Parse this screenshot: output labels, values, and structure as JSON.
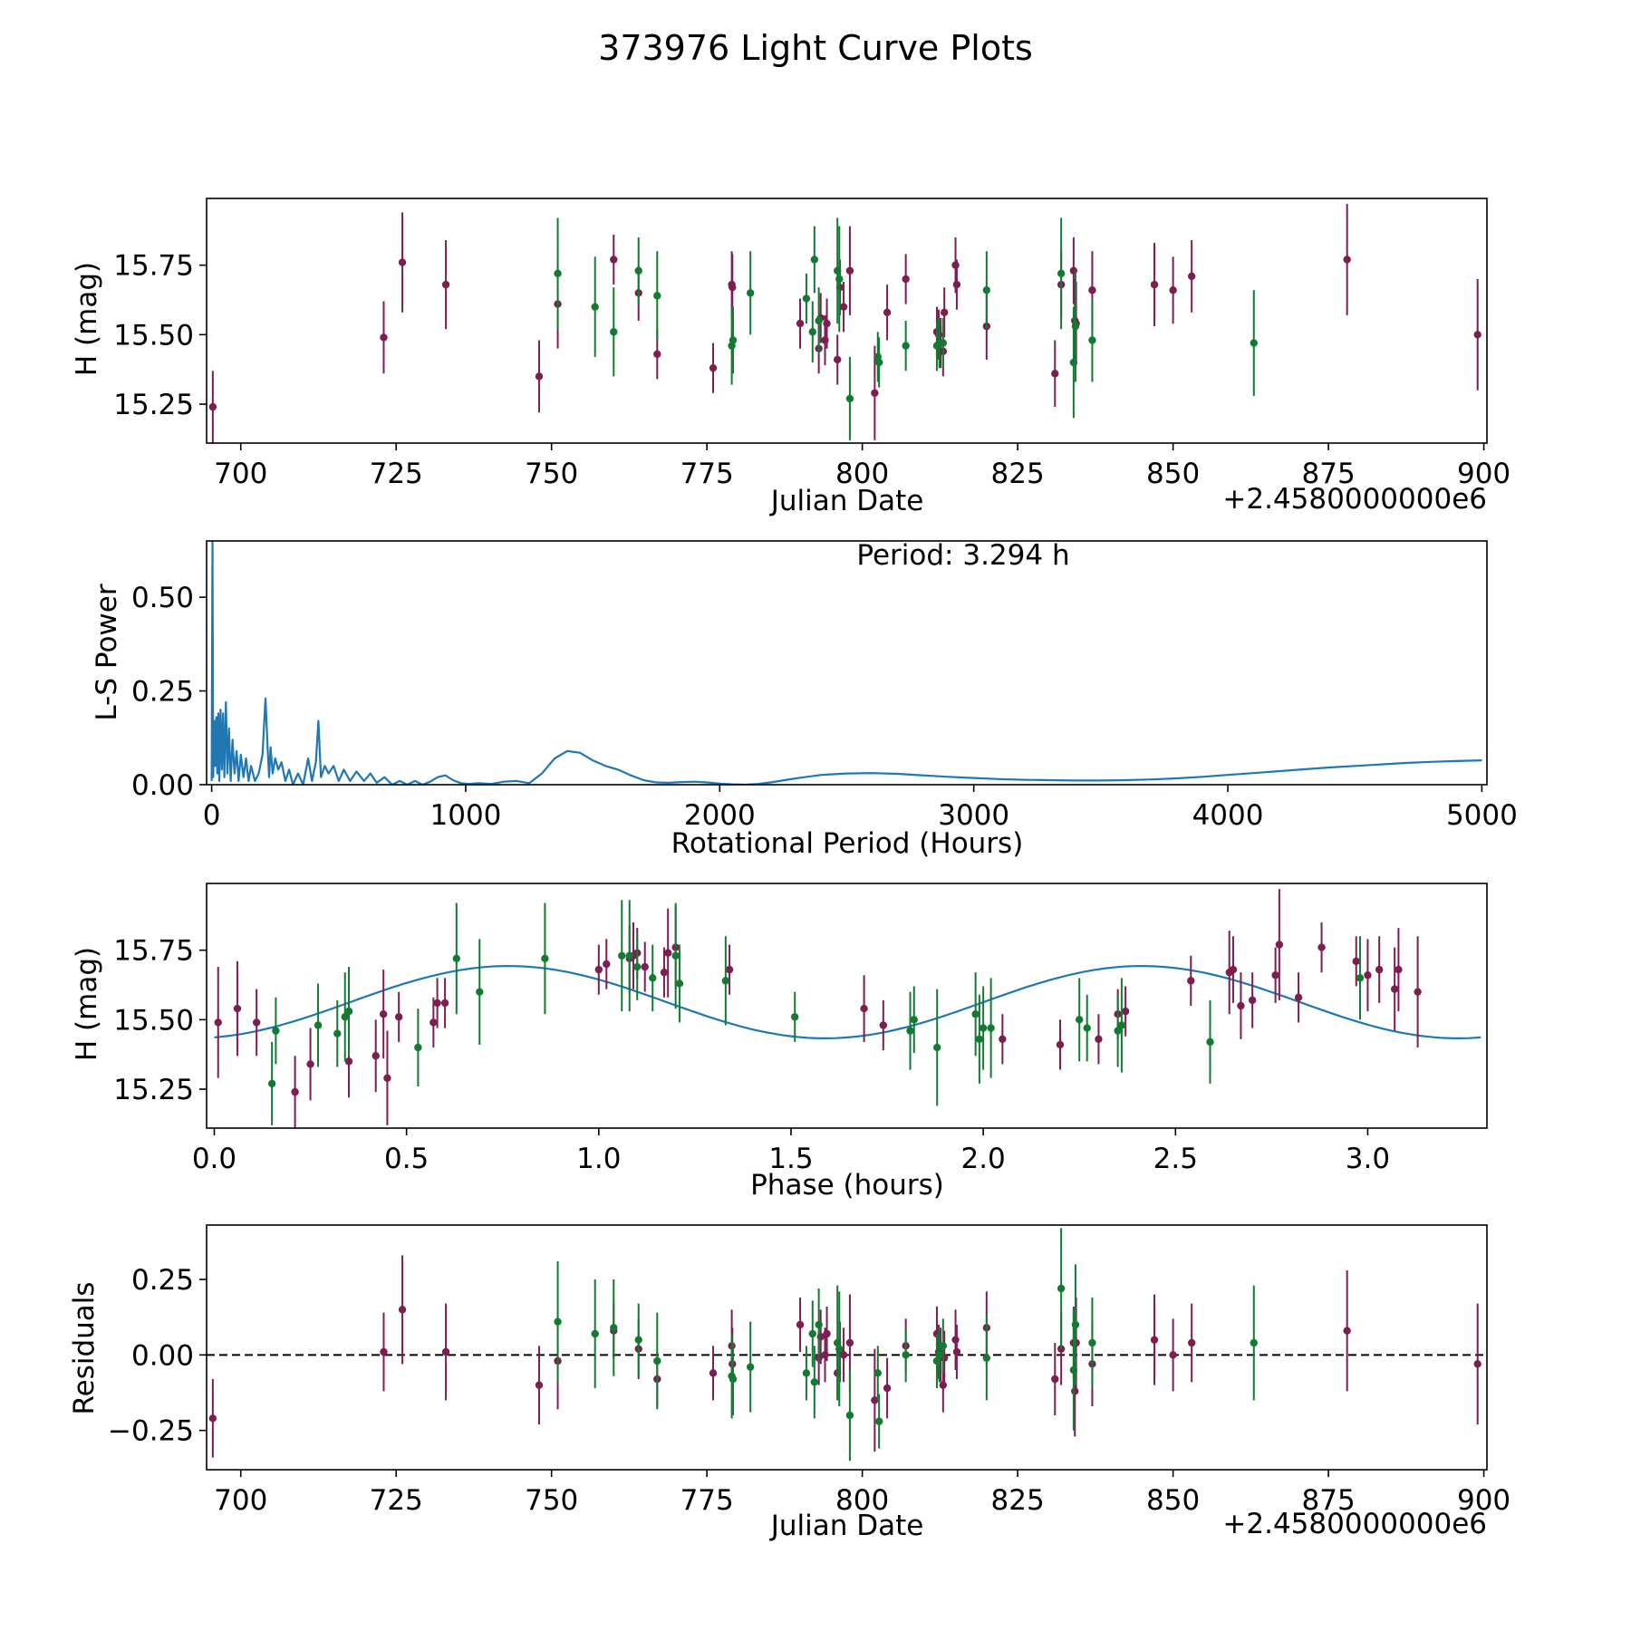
{
  "figure_title": "373976 Light Curve Plots",
  "colors": {
    "purple": "#7d1d52",
    "green": "#137a32",
    "line": "#1f77b4",
    "axis": "#000000"
  },
  "chart_data": [
    {
      "id": "lightcurve",
      "type": "scatter",
      "xlabel": "Julian Date",
      "ylabel": "H (mag)",
      "offset_label": "+2.4580000000e6",
      "xlim": [
        694.5,
        900.5
      ],
      "ylim": [
        15.11,
        15.99
      ],
      "xticks": [
        700,
        725,
        750,
        775,
        800,
        825,
        850,
        875,
        900
      ],
      "xtick_labels": [
        "700",
        "725",
        "750",
        "775",
        "800",
        "825",
        "850",
        "875",
        "900"
      ],
      "yticks": [
        15.25,
        15.5,
        15.75
      ],
      "ytick_labels": [
        "15.25",
        "15.50",
        "15.75"
      ],
      "series": [
        {
          "name": "purple",
          "x": [
            695.5,
            723.0,
            726.0,
            733.0,
            748.0,
            751.0,
            760.0,
            764.0,
            767.0,
            776.0,
            779.0,
            779.1,
            790.0,
            793.0,
            793.3,
            794.0,
            794.3,
            796.0,
            796.4,
            797.0,
            798.0,
            802.0,
            804.0,
            807.0,
            812.0,
            812.3,
            812.6,
            813.0,
            813.2,
            815.0,
            815.2,
            820.0,
            831.0,
            832.0,
            834.0,
            834.2,
            834.4,
            837.0,
            847.0,
            850.0,
            853.0,
            878.0,
            899.0
          ],
          "y": [
            15.24,
            15.49,
            15.76,
            15.68,
            15.35,
            15.61,
            15.77,
            15.65,
            15.43,
            15.38,
            15.68,
            15.67,
            15.54,
            15.45,
            15.56,
            15.48,
            15.54,
            15.41,
            15.67,
            15.6,
            15.73,
            15.29,
            15.58,
            15.7,
            15.51,
            15.5,
            15.47,
            15.44,
            15.58,
            15.75,
            15.68,
            15.53,
            15.36,
            15.68,
            15.73,
            15.55,
            15.54,
            15.66,
            15.68,
            15.66,
            15.71,
            15.77,
            15.5
          ],
          "yerr": [
            0.13,
            0.13,
            0.18,
            0.16,
            0.13,
            0.16,
            0.09,
            0.1,
            0.09,
            0.09,
            0.12,
            0.12,
            0.09,
            0.09,
            0.09,
            0.09,
            0.09,
            0.09,
            0.1,
            0.09,
            0.16,
            0.17,
            0.1,
            0.09,
            0.09,
            0.09,
            0.09,
            0.09,
            0.09,
            0.1,
            0.09,
            0.12,
            0.12,
            0.12,
            0.12,
            0.15,
            0.15,
            0.14,
            0.15,
            0.12,
            0.13,
            0.2,
            0.2
          ]
        },
        {
          "name": "green",
          "x": [
            751.0,
            757.0,
            760.0,
            764.0,
            767.0,
            779.0,
            779.2,
            782.0,
            791.0,
            792.0,
            792.3,
            793.0,
            796.0,
            796.3,
            798.0,
            802.5,
            802.7,
            807.0,
            812.0,
            812.4,
            813.0,
            820.0,
            832.0,
            834.0,
            834.3,
            837.0,
            863.0
          ],
          "y": [
            15.72,
            15.6,
            15.51,
            15.73,
            15.64,
            15.46,
            15.48,
            15.65,
            15.63,
            15.51,
            15.77,
            15.55,
            15.73,
            15.7,
            15.27,
            15.42,
            15.4,
            15.46,
            15.46,
            15.47,
            15.47,
            15.66,
            15.72,
            15.4,
            15.53,
            15.48,
            15.47
          ],
          "yerr": [
            0.2,
            0.18,
            0.16,
            0.12,
            0.16,
            0.14,
            0.12,
            0.15,
            0.09,
            0.11,
            0.12,
            0.12,
            0.19,
            0.19,
            0.15,
            0.09,
            0.09,
            0.09,
            0.09,
            0.09,
            0.09,
            0.14,
            0.2,
            0.2,
            0.2,
            0.15,
            0.19
          ]
        }
      ]
    },
    {
      "id": "periodogram",
      "type": "line",
      "xlabel": "Rotational Period (Hours)",
      "ylabel": "L-S Power",
      "annotation": "Period: 3.294 h",
      "xlim": [
        -20,
        5020
      ],
      "ylim": [
        0,
        0.65
      ],
      "xticks": [
        0,
        1000,
        2000,
        3000,
        4000,
        5000
      ],
      "xtick_labels": [
        "0",
        "1000",
        "2000",
        "3000",
        "4000",
        "5000"
      ],
      "yticks": [
        0,
        0.25,
        0.5
      ],
      "ytick_labels": [
        "0.00",
        "0.25",
        "0.50"
      ],
      "x": [
        0,
        3.3,
        6,
        10,
        14,
        18,
        22,
        26,
        30,
        35,
        40,
        45,
        50,
        56,
        62,
        68,
        75,
        82,
        90,
        98,
        106,
        115,
        125,
        135,
        145,
        155,
        170,
        185,
        200,
        212,
        220,
        226,
        232,
        240,
        250,
        262,
        275,
        290,
        305,
        320,
        340,
        360,
        380,
        395,
        410,
        420,
        430,
        445,
        460,
        480,
        500,
        520,
        545,
        570,
        600,
        625,
        650,
        680,
        710,
        740,
        770,
        800,
        830,
        860,
        890,
        920,
        950,
        980,
        1010,
        1050,
        1100,
        1150,
        1200,
        1250,
        1300,
        1350,
        1400,
        1450,
        1500,
        1550,
        1600,
        1650,
        1700,
        1750,
        1800,
        1850,
        1900,
        1950,
        2000,
        2050,
        2100,
        2150,
        2200,
        2300,
        2400,
        2500,
        2600,
        2700,
        2800,
        2900,
        3000,
        3100,
        3200,
        3300,
        3400,
        3500,
        3600,
        3700,
        3800,
        3900,
        4000,
        4100,
        4200,
        4300,
        4400,
        4500,
        4600,
        4700,
        4800,
        4900,
        5000
      ],
      "y": [
        0.01,
        0.65,
        0.02,
        0.17,
        0.05,
        0.18,
        0.03,
        0.19,
        0.01,
        0.2,
        0.04,
        0.19,
        0.02,
        0.22,
        0.03,
        0.15,
        0.01,
        0.12,
        0.03,
        0.09,
        0.01,
        0.08,
        0.02,
        0.07,
        0.01,
        0.05,
        0.01,
        0.03,
        0.08,
        0.23,
        0.1,
        0.02,
        0.1,
        0.03,
        0.07,
        0.04,
        0.06,
        0.01,
        0.04,
        0.0,
        0.03,
        0.0,
        0.07,
        0.01,
        0.06,
        0.17,
        0.02,
        0.05,
        0.03,
        0.05,
        0.01,
        0.04,
        0.01,
        0.035,
        0.01,
        0.03,
        0.005,
        0.02,
        0.0,
        0.01,
        0.0,
        0.01,
        0.0,
        0.008,
        0.02,
        0.025,
        0.012,
        0.004,
        0.002,
        0.004,
        0.002,
        0.008,
        0.01,
        0.004,
        0.03,
        0.07,
        0.09,
        0.085,
        0.065,
        0.05,
        0.04,
        0.025,
        0.012,
        0.006,
        0.005,
        0.007,
        0.008,
        0.006,
        0.003,
        0.001,
        0.0,
        0.002,
        0.006,
        0.017,
        0.026,
        0.03,
        0.031,
        0.029,
        0.025,
        0.021,
        0.018,
        0.015,
        0.013,
        0.012,
        0.011,
        0.011,
        0.012,
        0.014,
        0.017,
        0.021,
        0.026,
        0.031,
        0.036,
        0.041,
        0.046,
        0.05,
        0.054,
        0.058,
        0.061,
        0.063,
        0.065
      ]
    },
    {
      "id": "phased",
      "type": "scatter",
      "xlabel": "Phase (hours)",
      "ylabel": "H (mag)",
      "xlim": [
        -0.02,
        3.31
      ],
      "ylim": [
        15.11,
        15.99
      ],
      "xticks": [
        0,
        0.5,
        1.0,
        1.5,
        2.0,
        2.5,
        3.0
      ],
      "xtick_labels": [
        "0.0",
        "0.5",
        "1.0",
        "1.5",
        "2.0",
        "2.5",
        "3.0"
      ],
      "yticks": [
        15.25,
        15.5,
        15.75
      ],
      "ytick_labels": [
        "15.25",
        "15.50",
        "15.75"
      ],
      "fit_curve": {
        "mean": 15.563,
        "amplitude": 0.13,
        "period": 1.647,
        "phase_shift": 0.765
      },
      "series": [
        {
          "name": "purple",
          "x": [
            0.01,
            0.06,
            0.11,
            0.21,
            0.25,
            0.35,
            0.42,
            0.44,
            0.45,
            0.48,
            0.57,
            0.58,
            0.6,
            1.0,
            1.02,
            1.08,
            1.09,
            1.1,
            1.12,
            1.17,
            1.18,
            1.2,
            1.34,
            1.69,
            1.74,
            2.05,
            2.2,
            2.3,
            2.35,
            2.37,
            2.54,
            2.64,
            2.65,
            2.67,
            2.7,
            2.76,
            2.77,
            2.82,
            2.88,
            2.97,
            3.0,
            3.03,
            3.07,
            3.08,
            3.13
          ],
          "y": [
            15.49,
            15.54,
            15.49,
            15.24,
            15.34,
            15.35,
            15.37,
            15.52,
            15.29,
            15.51,
            15.49,
            15.56,
            15.56,
            15.68,
            15.7,
            15.72,
            15.73,
            15.74,
            15.69,
            15.67,
            15.74,
            15.76,
            15.68,
            15.54,
            15.48,
            15.43,
            15.41,
            15.43,
            15.52,
            15.53,
            15.64,
            15.67,
            15.68,
            15.55,
            15.57,
            15.66,
            15.77,
            15.58,
            15.76,
            15.71,
            15.66,
            15.68,
            15.61,
            15.68,
            15.6
          ],
          "yerr": [
            0.2,
            0.17,
            0.12,
            0.13,
            0.13,
            0.13,
            0.13,
            0.16,
            0.17,
            0.09,
            0.09,
            0.09,
            0.09,
            0.09,
            0.09,
            0.12,
            0.12,
            0.09,
            0.09,
            0.09,
            0.16,
            0.15,
            0.09,
            0.12,
            0.09,
            0.09,
            0.09,
            0.09,
            0.09,
            0.09,
            0.09,
            0.15,
            0.12,
            0.12,
            0.1,
            0.1,
            0.2,
            0.09,
            0.09,
            0.09,
            0.13,
            0.12,
            0.15,
            0.15,
            0.2
          ]
        },
        {
          "name": "green",
          "x": [
            0.15,
            0.16,
            0.27,
            0.32,
            0.34,
            0.35,
            0.53,
            0.63,
            0.69,
            0.86,
            1.06,
            1.08,
            1.1,
            1.14,
            1.2,
            1.21,
            1.33,
            1.51,
            1.81,
            1.82,
            1.88,
            1.98,
            1.99,
            2.0,
            2.02,
            2.25,
            2.27,
            2.35,
            2.36,
            2.59,
            2.98
          ],
          "y": [
            15.27,
            15.46,
            15.48,
            15.45,
            15.51,
            15.53,
            15.4,
            15.72,
            15.6,
            15.72,
            15.73,
            15.73,
            15.69,
            15.65,
            15.73,
            15.63,
            15.64,
            15.51,
            15.46,
            15.5,
            15.4,
            15.52,
            15.43,
            15.47,
            15.47,
            15.5,
            15.47,
            15.46,
            15.48,
            15.42,
            15.65
          ],
          "yerr": [
            0.15,
            0.12,
            0.15,
            0.12,
            0.16,
            0.16,
            0.14,
            0.2,
            0.19,
            0.2,
            0.2,
            0.2,
            0.12,
            0.12,
            0.19,
            0.14,
            0.16,
            0.09,
            0.14,
            0.12,
            0.21,
            0.15,
            0.16,
            0.15,
            0.18,
            0.15,
            0.12,
            0.13,
            0.17,
            0.15,
            0.15
          ]
        }
      ]
    },
    {
      "id": "residuals",
      "type": "scatter",
      "xlabel": "Julian Date",
      "ylabel": "Residuals",
      "offset_label": "+2.4580000000e6",
      "xlim": [
        694.5,
        900.5
      ],
      "ylim": [
        -0.38,
        0.43
      ],
      "xticks": [
        700,
        725,
        750,
        775,
        800,
        825,
        850,
        875,
        900
      ],
      "xtick_labels": [
        "700",
        "725",
        "750",
        "775",
        "800",
        "825",
        "850",
        "875",
        "900"
      ],
      "yticks": [
        -0.25,
        0.0,
        0.25
      ],
      "ytick_labels": [
        "−0.25",
        "0.00",
        "0.25"
      ],
      "reference_line": 0.0,
      "series": [
        {
          "name": "purple",
          "x": [
            695.5,
            723.0,
            726.0,
            733.0,
            748.0,
            751.0,
            760.0,
            764.0,
            767.0,
            776.0,
            779.0,
            779.1,
            790.0,
            793.0,
            793.3,
            794.0,
            794.3,
            796.0,
            796.4,
            797.0,
            798.0,
            802.0,
            804.0,
            807.0,
            812.0,
            812.3,
            812.6,
            813.0,
            813.2,
            815.0,
            815.2,
            820.0,
            831.0,
            832.0,
            834.0,
            834.2,
            834.4,
            837.0,
            847.0,
            850.0,
            853.0,
            878.0,
            899.0
          ],
          "y": [
            -0.21,
            0.01,
            0.15,
            0.01,
            -0.1,
            -0.02,
            0.08,
            0.02,
            -0.08,
            -0.06,
            0.03,
            -0.03,
            0.1,
            -0.01,
            0.06,
            0.0,
            0.07,
            -0.06,
            0.01,
            0.0,
            0.04,
            -0.15,
            -0.11,
            0.03,
            0.07,
            0.01,
            0.0,
            -0.1,
            -0.01,
            0.05,
            0.01,
            0.09,
            -0.08,
            0.02,
            0.04,
            -0.12,
            0.04,
            -0.03,
            0.05,
            0.0,
            0.04,
            0.08,
            -0.03
          ],
          "yerr": [
            0.13,
            0.13,
            0.18,
            0.16,
            0.13,
            0.16,
            0.09,
            0.1,
            0.09,
            0.09,
            0.12,
            0.12,
            0.09,
            0.09,
            0.09,
            0.09,
            0.09,
            0.09,
            0.1,
            0.09,
            0.16,
            0.17,
            0.1,
            0.09,
            0.09,
            0.09,
            0.09,
            0.09,
            0.09,
            0.1,
            0.09,
            0.12,
            0.12,
            0.12,
            0.12,
            0.15,
            0.15,
            0.14,
            0.15,
            0.12,
            0.13,
            0.2,
            0.2
          ]
        },
        {
          "name": "green",
          "x": [
            751.0,
            757.0,
            760.0,
            764.0,
            767.0,
            779.0,
            779.2,
            782.0,
            791.0,
            792.0,
            792.3,
            793.0,
            796.0,
            796.3,
            798.0,
            802.5,
            802.7,
            807.0,
            812.0,
            812.4,
            813.0,
            820.0,
            832.0,
            834.0,
            834.3,
            837.0,
            863.0
          ],
          "y": [
            0.11,
            0.07,
            0.09,
            0.05,
            -0.02,
            -0.07,
            -0.08,
            -0.04,
            -0.06,
            0.07,
            -0.09,
            0.1,
            0.04,
            0.02,
            -0.2,
            -0.06,
            -0.22,
            0.0,
            -0.02,
            0.0,
            0.03,
            -0.01,
            0.22,
            -0.05,
            0.1,
            0.04,
            0.04
          ],
          "yerr": [
            0.2,
            0.18,
            0.16,
            0.12,
            0.16,
            0.14,
            0.12,
            0.15,
            0.09,
            0.11,
            0.12,
            0.12,
            0.19,
            0.19,
            0.15,
            0.09,
            0.09,
            0.09,
            0.09,
            0.09,
            0.09,
            0.14,
            0.2,
            0.2,
            0.2,
            0.15,
            0.19
          ]
        }
      ]
    }
  ]
}
